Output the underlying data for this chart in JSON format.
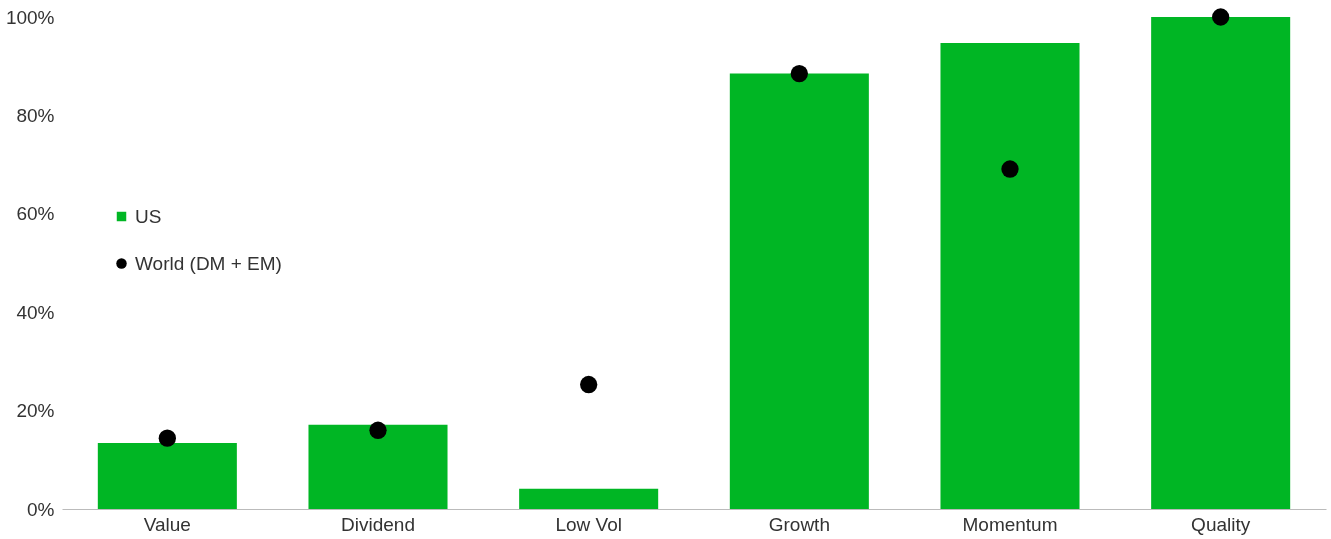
{
  "chart_data": {
    "type": "bar",
    "categories": [
      "Value",
      "Dividend",
      "Low Vol",
      "Growth",
      "Momentum",
      "Quality"
    ],
    "series": [
      {
        "name": "US",
        "color": "#00b624",
        "values": [
          13.4,
          17.1,
          4.1,
          88.5,
          94.7,
          100
        ]
      },
      {
        "name": "World (DM + EM)",
        "type": "scatter",
        "color": "#000000",
        "marker": "circle",
        "values": [
          14.4,
          16.0,
          25.3,
          88.5,
          69.1,
          100
        ]
      }
    ],
    "ylim": [
      0,
      100
    ],
    "yticks": [
      {
        "value": 0,
        "label": "0%"
      },
      {
        "value": 20,
        "label": "20%"
      },
      {
        "value": 40,
        "label": "40%"
      },
      {
        "value": 60,
        "label": "60%"
      },
      {
        "value": 80,
        "label": "80%"
      },
      {
        "value": 100,
        "label": "100%"
      }
    ],
    "grid": false,
    "legend": "left"
  }
}
